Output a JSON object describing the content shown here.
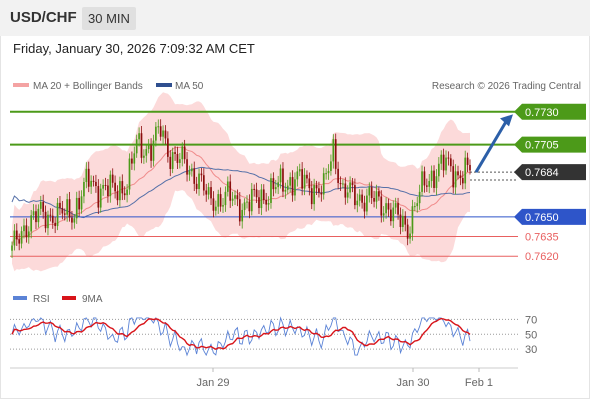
{
  "header": {
    "symbol": "USD/CHF",
    "timeframe": "30 MIN"
  },
  "timestamp": "Friday, January 30, 2026 7:09:32 AM CET",
  "watermark": "Research © 2026 Trading Central",
  "legend": {
    "bollinger": "MA 20 + Bollinger Bands",
    "ma50": "MA 50",
    "rsi": "RSI",
    "rsi_ma": "9MA"
  },
  "colors": {
    "up": "#4c9a19",
    "down": "#8b0d0d",
    "band": "#fcd3d3",
    "ma20": "#f08b8b",
    "ma50": "#5570a8",
    "resistance": "#4c9a19",
    "support_blue": "#2e55c9",
    "support_red": "#e86060",
    "current": "#333333",
    "rsi": "#5b83d6",
    "rsi_ma": "#d8141a",
    "arrow": "#2c5fa8"
  },
  "chart_data": {
    "type": "candlestick",
    "ylim": [
      0.7608,
      0.7742
    ],
    "x_ticks": [
      "Jan 29",
      "Jan 30",
      "Feb 1"
    ],
    "levels": [
      {
        "label": "0.7730",
        "value": 0.773,
        "kind": "resistance"
      },
      {
        "label": "0.7705",
        "value": 0.7705,
        "kind": "resistance"
      },
      {
        "label": "0.7684",
        "value": 0.7684,
        "kind": "current"
      },
      {
        "label": "0.7650",
        "value": 0.765,
        "kind": "pivot"
      },
      {
        "label": "0.7635",
        "value": 0.7635,
        "kind": "support"
      },
      {
        "label": "0.7620",
        "value": 0.762,
        "kind": "support"
      }
    ],
    "forecast_arrow": {
      "from": 0.7684,
      "to": 0.7725
    },
    "rsi_ticks": [
      "70",
      "50",
      "30"
    ],
    "rsi_ylim": [
      10,
      80
    ]
  }
}
